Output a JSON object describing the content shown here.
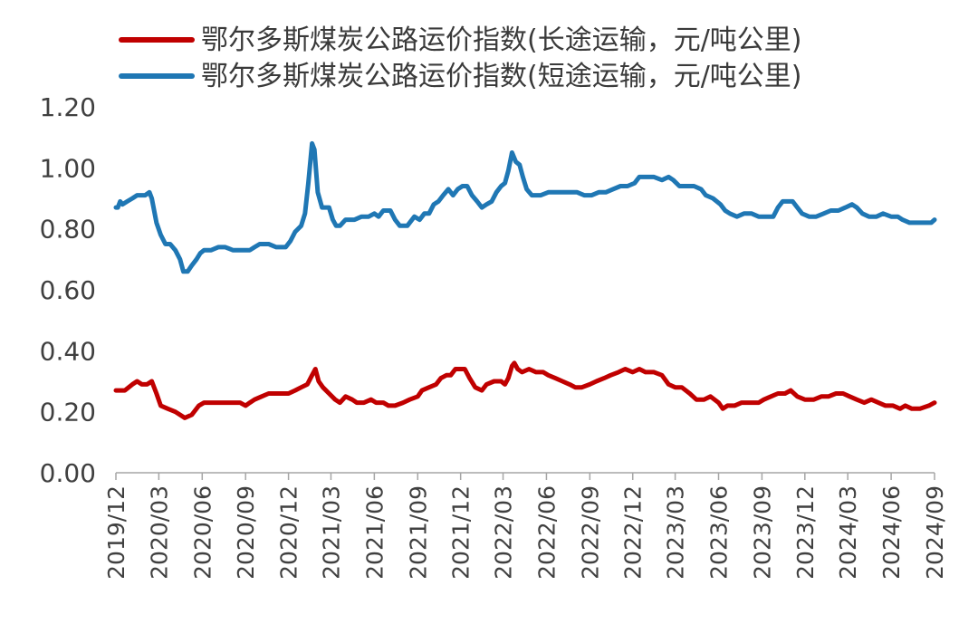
{
  "chart_data": {
    "type": "line",
    "title": "",
    "xlabel": "",
    "ylabel": "",
    "ylim": [
      0,
      1.2
    ],
    "yticks": [
      "0.00",
      "0.20",
      "0.40",
      "0.60",
      "0.80",
      "1.00",
      "1.20"
    ],
    "xlim": [
      "2019-12",
      "2024-09"
    ],
    "xticks": [
      "2019/12",
      "2020/03",
      "2020/06",
      "2020/09",
      "2020/12",
      "2021/03",
      "2021/06",
      "2021/09",
      "2021/12",
      "2022/03",
      "2022/06",
      "2022/09",
      "2022/12",
      "2023/03",
      "2023/06",
      "2023/09",
      "2023/12",
      "2024/03",
      "2024/06",
      "2024/09"
    ],
    "grid": false,
    "legend_position": "top",
    "series": [
      {
        "name": "鄂尔多斯煤炭公路运价指数(长途运输，元/吨公里)",
        "color": "#C00000",
        "points": [
          [
            "2019-12-01",
            0.27
          ],
          [
            "2019-12-20",
            0.27
          ],
          [
            "2020-01-05",
            0.29
          ],
          [
            "2020-01-15",
            0.3
          ],
          [
            "2020-01-25",
            0.29
          ],
          [
            "2020-02-05",
            0.29
          ],
          [
            "2020-02-15",
            0.3
          ],
          [
            "2020-02-25",
            0.26
          ],
          [
            "2020-03-05",
            0.22
          ],
          [
            "2020-03-20",
            0.21
          ],
          [
            "2020-04-05",
            0.2
          ],
          [
            "2020-04-15",
            0.19
          ],
          [
            "2020-04-25",
            0.18
          ],
          [
            "2020-05-10",
            0.19
          ],
          [
            "2020-05-25",
            0.22
          ],
          [
            "2020-06-05",
            0.23
          ],
          [
            "2020-06-20",
            0.23
          ],
          [
            "2020-07-10",
            0.23
          ],
          [
            "2020-08-01",
            0.23
          ],
          [
            "2020-08-20",
            0.23
          ],
          [
            "2020-09-01",
            0.22
          ],
          [
            "2020-09-10",
            0.23
          ],
          [
            "2020-09-20",
            0.24
          ],
          [
            "2020-10-05",
            0.25
          ],
          [
            "2020-10-20",
            0.26
          ],
          [
            "2020-11-10",
            0.26
          ],
          [
            "2020-12-01",
            0.26
          ],
          [
            "2020-12-15",
            0.27
          ],
          [
            "2020-12-28",
            0.28
          ],
          [
            "2021-01-10",
            0.29
          ],
          [
            "2021-01-20",
            0.32
          ],
          [
            "2021-01-27",
            0.34
          ],
          [
            "2021-02-03",
            0.3
          ],
          [
            "2021-02-12",
            0.28
          ],
          [
            "2021-02-25",
            0.26
          ],
          [
            "2021-03-10",
            0.24
          ],
          [
            "2021-03-20",
            0.23
          ],
          [
            "2021-04-01",
            0.25
          ],
          [
            "2021-04-15",
            0.24
          ],
          [
            "2021-04-25",
            0.23
          ],
          [
            "2021-05-10",
            0.23
          ],
          [
            "2021-05-25",
            0.24
          ],
          [
            "2021-06-05",
            0.23
          ],
          [
            "2021-06-20",
            0.23
          ],
          [
            "2021-07-01",
            0.22
          ],
          [
            "2021-07-15",
            0.22
          ],
          [
            "2021-08-01",
            0.23
          ],
          [
            "2021-08-15",
            0.24
          ],
          [
            "2021-09-01",
            0.25
          ],
          [
            "2021-09-10",
            0.27
          ],
          [
            "2021-09-25",
            0.28
          ],
          [
            "2021-10-10",
            0.29
          ],
          [
            "2021-10-20",
            0.31
          ],
          [
            "2021-11-01",
            0.32
          ],
          [
            "2021-11-10",
            0.32
          ],
          [
            "2021-11-20",
            0.34
          ],
          [
            "2021-12-01",
            0.34
          ],
          [
            "2021-12-10",
            0.34
          ],
          [
            "2021-12-20",
            0.31
          ],
          [
            "2022-01-01",
            0.28
          ],
          [
            "2022-01-15",
            0.27
          ],
          [
            "2022-01-25",
            0.29
          ],
          [
            "2022-02-10",
            0.3
          ],
          [
            "2022-02-25",
            0.3
          ],
          [
            "2022-03-05",
            0.29
          ],
          [
            "2022-03-12",
            0.31
          ],
          [
            "2022-03-20",
            0.35
          ],
          [
            "2022-03-25",
            0.36
          ],
          [
            "2022-04-01",
            0.34
          ],
          [
            "2022-04-10",
            0.33
          ],
          [
            "2022-04-25",
            0.34
          ],
          [
            "2022-05-10",
            0.33
          ],
          [
            "2022-05-25",
            0.33
          ],
          [
            "2022-06-05",
            0.32
          ],
          [
            "2022-06-20",
            0.31
          ],
          [
            "2022-07-05",
            0.3
          ],
          [
            "2022-07-20",
            0.29
          ],
          [
            "2022-08-01",
            0.28
          ],
          [
            "2022-08-15",
            0.28
          ],
          [
            "2022-09-01",
            0.29
          ],
          [
            "2022-09-15",
            0.3
          ],
          [
            "2022-10-01",
            0.31
          ],
          [
            "2022-10-15",
            0.32
          ],
          [
            "2022-11-01",
            0.33
          ],
          [
            "2022-11-15",
            0.34
          ],
          [
            "2022-12-01",
            0.33
          ],
          [
            "2022-12-15",
            0.34
          ],
          [
            "2022-12-28",
            0.33
          ],
          [
            "2023-01-15",
            0.33
          ],
          [
            "2023-02-01",
            0.32
          ],
          [
            "2023-02-15",
            0.29
          ],
          [
            "2023-03-01",
            0.28
          ],
          [
            "2023-03-15",
            0.28
          ],
          [
            "2023-04-01",
            0.26
          ],
          [
            "2023-04-15",
            0.24
          ],
          [
            "2023-05-01",
            0.24
          ],
          [
            "2023-05-15",
            0.25
          ],
          [
            "2023-06-01",
            0.23
          ],
          [
            "2023-06-10",
            0.21
          ],
          [
            "2023-06-20",
            0.22
          ],
          [
            "2023-07-05",
            0.22
          ],
          [
            "2023-07-20",
            0.23
          ],
          [
            "2023-08-05",
            0.23
          ],
          [
            "2023-08-25",
            0.23
          ],
          [
            "2023-09-05",
            0.24
          ],
          [
            "2023-09-20",
            0.25
          ],
          [
            "2023-10-05",
            0.26
          ],
          [
            "2023-10-20",
            0.26
          ],
          [
            "2023-11-01",
            0.27
          ],
          [
            "2023-11-15",
            0.25
          ],
          [
            "2023-12-01",
            0.24
          ],
          [
            "2023-12-20",
            0.24
          ],
          [
            "2024-01-05",
            0.25
          ],
          [
            "2024-01-20",
            0.25
          ],
          [
            "2024-02-05",
            0.26
          ],
          [
            "2024-02-20",
            0.26
          ],
          [
            "2024-03-05",
            0.25
          ],
          [
            "2024-03-20",
            0.24
          ],
          [
            "2024-04-05",
            0.23
          ],
          [
            "2024-04-20",
            0.24
          ],
          [
            "2024-05-05",
            0.23
          ],
          [
            "2024-05-20",
            0.22
          ],
          [
            "2024-06-05",
            0.22
          ],
          [
            "2024-06-20",
            0.21
          ],
          [
            "2024-07-01",
            0.22
          ],
          [
            "2024-07-15",
            0.21
          ],
          [
            "2024-08-01",
            0.21
          ],
          [
            "2024-08-20",
            0.22
          ],
          [
            "2024-09-01",
            0.23
          ]
        ]
      },
      {
        "name": "鄂尔多斯煤炭公路运价指数(短途运输，元/吨公里)",
        "color": "#1F77B4",
        "points": [
          [
            "2019-12-01",
            0.87
          ],
          [
            "2019-12-05",
            0.87
          ],
          [
            "2019-12-10",
            0.89
          ],
          [
            "2019-12-15",
            0.88
          ],
          [
            "2019-12-25",
            0.89
          ],
          [
            "2020-01-05",
            0.9
          ],
          [
            "2020-01-15",
            0.91
          ],
          [
            "2020-02-01",
            0.91
          ],
          [
            "2020-02-10",
            0.92
          ],
          [
            "2020-02-15",
            0.9
          ],
          [
            "2020-02-25",
            0.82
          ],
          [
            "2020-03-05",
            0.78
          ],
          [
            "2020-03-15",
            0.75
          ],
          [
            "2020-03-25",
            0.75
          ],
          [
            "2020-04-05",
            0.73
          ],
          [
            "2020-04-15",
            0.7
          ],
          [
            "2020-04-22",
            0.66
          ],
          [
            "2020-05-01",
            0.66
          ],
          [
            "2020-05-10",
            0.68
          ],
          [
            "2020-05-20",
            0.7
          ],
          [
            "2020-05-28",
            0.72
          ],
          [
            "2020-06-05",
            0.73
          ],
          [
            "2020-06-20",
            0.73
          ],
          [
            "2020-07-05",
            0.74
          ],
          [
            "2020-07-20",
            0.74
          ],
          [
            "2020-08-05",
            0.73
          ],
          [
            "2020-08-25",
            0.73
          ],
          [
            "2020-09-10",
            0.73
          ],
          [
            "2020-09-20",
            0.74
          ],
          [
            "2020-10-01",
            0.75
          ],
          [
            "2020-10-20",
            0.75
          ],
          [
            "2020-11-05",
            0.74
          ],
          [
            "2020-11-25",
            0.74
          ],
          [
            "2020-12-05",
            0.76
          ],
          [
            "2020-12-15",
            0.79
          ],
          [
            "2020-12-28",
            0.81
          ],
          [
            "2021-01-05",
            0.85
          ],
          [
            "2021-01-12",
            0.95
          ],
          [
            "2021-01-20",
            1.08
          ],
          [
            "2021-01-25",
            1.06
          ],
          [
            "2021-02-01",
            0.92
          ],
          [
            "2021-02-10",
            0.87
          ],
          [
            "2021-02-25",
            0.87
          ],
          [
            "2021-03-05",
            0.83
          ],
          [
            "2021-03-12",
            0.81
          ],
          [
            "2021-03-20",
            0.81
          ],
          [
            "2021-04-01",
            0.83
          ],
          [
            "2021-04-20",
            0.83
          ],
          [
            "2021-05-05",
            0.84
          ],
          [
            "2021-05-20",
            0.84
          ],
          [
            "2021-06-01",
            0.85
          ],
          [
            "2021-06-10",
            0.84
          ],
          [
            "2021-06-20",
            0.86
          ],
          [
            "2021-07-05",
            0.86
          ],
          [
            "2021-07-15",
            0.83
          ],
          [
            "2021-07-25",
            0.81
          ],
          [
            "2021-08-10",
            0.81
          ],
          [
            "2021-08-25",
            0.84
          ],
          [
            "2021-09-05",
            0.83
          ],
          [
            "2021-09-15",
            0.85
          ],
          [
            "2021-09-25",
            0.85
          ],
          [
            "2021-10-05",
            0.88
          ],
          [
            "2021-10-15",
            0.89
          ],
          [
            "2021-10-25",
            0.91
          ],
          [
            "2021-11-05",
            0.93
          ],
          [
            "2021-11-15",
            0.91
          ],
          [
            "2021-11-25",
            0.93
          ],
          [
            "2021-12-05",
            0.94
          ],
          [
            "2021-12-15",
            0.94
          ],
          [
            "2021-12-25",
            0.91
          ],
          [
            "2022-01-05",
            0.89
          ],
          [
            "2022-01-15",
            0.87
          ],
          [
            "2022-01-25",
            0.88
          ],
          [
            "2022-02-05",
            0.89
          ],
          [
            "2022-02-15",
            0.92
          ],
          [
            "2022-02-25",
            0.94
          ],
          [
            "2022-03-05",
            0.95
          ],
          [
            "2022-03-12",
            0.99
          ],
          [
            "2022-03-20",
            1.05
          ],
          [
            "2022-03-28",
            1.02
          ],
          [
            "2022-04-05",
            1.01
          ],
          [
            "2022-04-12",
            0.97
          ],
          [
            "2022-04-20",
            0.93
          ],
          [
            "2022-05-01",
            0.91
          ],
          [
            "2022-05-20",
            0.91
          ],
          [
            "2022-06-05",
            0.92
          ],
          [
            "2022-06-25",
            0.92
          ],
          [
            "2022-07-15",
            0.92
          ],
          [
            "2022-08-05",
            0.92
          ],
          [
            "2022-08-20",
            0.91
          ],
          [
            "2022-09-05",
            0.91
          ],
          [
            "2022-09-20",
            0.92
          ],
          [
            "2022-10-05",
            0.92
          ],
          [
            "2022-10-20",
            0.93
          ],
          [
            "2022-11-05",
            0.94
          ],
          [
            "2022-11-20",
            0.94
          ],
          [
            "2022-12-05",
            0.95
          ],
          [
            "2022-12-15",
            0.97
          ],
          [
            "2023-01-01",
            0.97
          ],
          [
            "2023-01-15",
            0.97
          ],
          [
            "2023-02-01",
            0.96
          ],
          [
            "2023-02-15",
            0.97
          ],
          [
            "2023-02-25",
            0.96
          ],
          [
            "2023-03-10",
            0.94
          ],
          [
            "2023-03-25",
            0.94
          ],
          [
            "2023-04-10",
            0.94
          ],
          [
            "2023-04-25",
            0.93
          ],
          [
            "2023-05-05",
            0.91
          ],
          [
            "2023-05-20",
            0.9
          ],
          [
            "2023-06-05",
            0.88
          ],
          [
            "2023-06-15",
            0.86
          ],
          [
            "2023-06-25",
            0.85
          ],
          [
            "2023-07-10",
            0.84
          ],
          [
            "2023-07-25",
            0.85
          ],
          [
            "2023-08-10",
            0.85
          ],
          [
            "2023-08-25",
            0.84
          ],
          [
            "2023-09-10",
            0.84
          ],
          [
            "2023-09-25",
            0.84
          ],
          [
            "2023-10-05",
            0.87
          ],
          [
            "2023-10-15",
            0.89
          ],
          [
            "2023-10-25",
            0.89
          ],
          [
            "2023-11-05",
            0.89
          ],
          [
            "2023-11-15",
            0.87
          ],
          [
            "2023-11-25",
            0.85
          ],
          [
            "2023-12-10",
            0.84
          ],
          [
            "2023-12-25",
            0.84
          ],
          [
            "2024-01-10",
            0.85
          ],
          [
            "2024-01-25",
            0.86
          ],
          [
            "2024-02-10",
            0.86
          ],
          [
            "2024-02-25",
            0.87
          ],
          [
            "2024-03-10",
            0.88
          ],
          [
            "2024-03-20",
            0.87
          ],
          [
            "2024-04-01",
            0.85
          ],
          [
            "2024-04-15",
            0.84
          ],
          [
            "2024-05-01",
            0.84
          ],
          [
            "2024-05-15",
            0.85
          ],
          [
            "2024-06-01",
            0.84
          ],
          [
            "2024-06-15",
            0.84
          ],
          [
            "2024-06-25",
            0.83
          ],
          [
            "2024-07-10",
            0.82
          ],
          [
            "2024-08-01",
            0.82
          ],
          [
            "2024-08-25",
            0.82
          ],
          [
            "2024-09-01",
            0.83
          ]
        ]
      }
    ]
  }
}
